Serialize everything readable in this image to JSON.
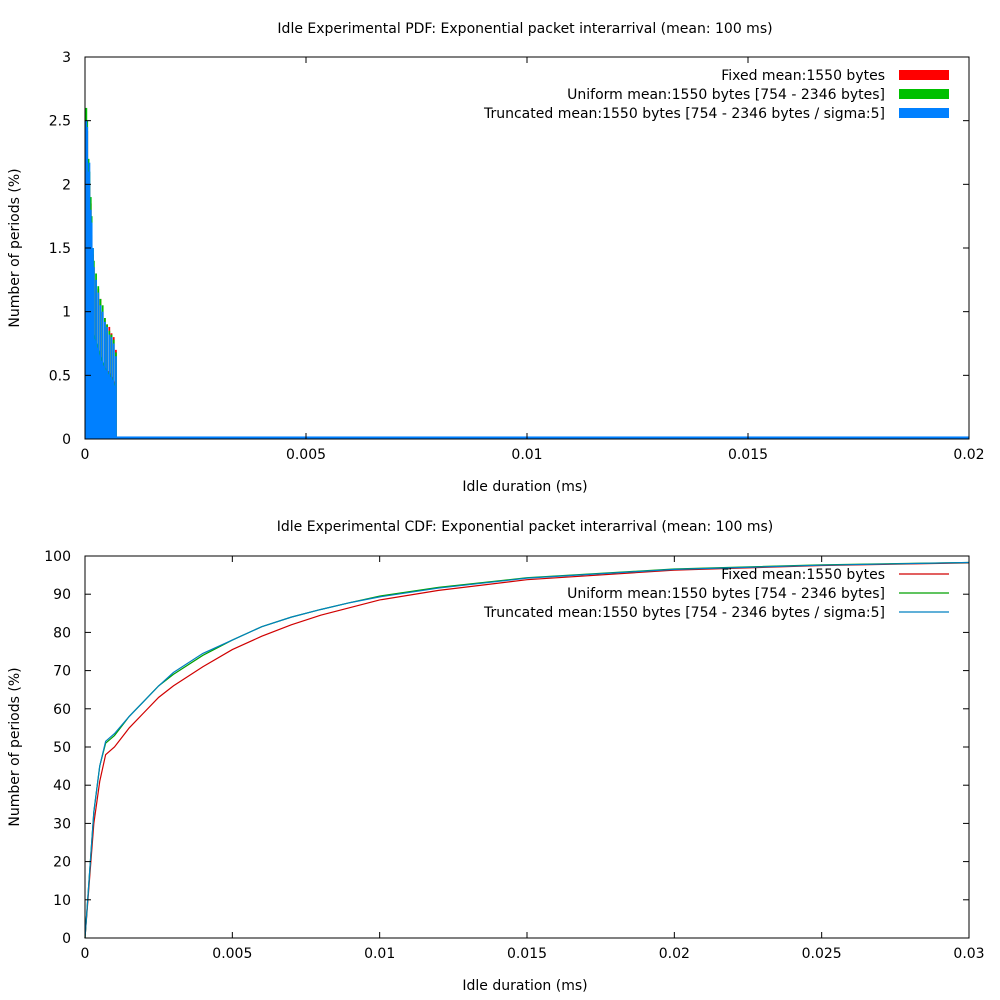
{
  "chart_data": [
    {
      "type": "bar",
      "title": "Idle Experimental PDF: Exponential packet interarrival (mean: 100 ms)",
      "xlabel": "Idle duration (ms)",
      "ylabel": "Number of periods (%)",
      "xlim": [
        0,
        0.02
      ],
      "ylim": [
        0,
        3
      ],
      "xticks": [
        "0",
        "0.005",
        "0.01",
        "0.015",
        "0.02"
      ],
      "yticks": [
        "0",
        "0.5",
        "1",
        "1.5",
        "2",
        "2.5",
        "3"
      ],
      "legend_position": "top-right",
      "grid": false,
      "series": [
        {
          "name": "Fixed mean:1550 bytes",
          "color": "#ff0000",
          "x": [
            3e-05,
            5e-05,
            8e-05,
            0.0001,
            0.00013,
            0.00015,
            0.00018,
            0.0002,
            0.00025,
            0.0003,
            0.00035,
            0.0004,
            0.00045,
            0.0005,
            0.00055,
            0.0006,
            0.00065,
            0.0007
          ],
          "values": [
            2.5,
            2.42,
            2.15,
            2.0,
            1.85,
            1.6,
            1.45,
            1.35,
            1.25,
            1.18,
            1.1,
            1.0,
            0.95,
            0.9,
            0.88,
            0.83,
            0.8,
            0.7
          ]
        },
        {
          "name": "Uniform mean:1550 bytes [754 - 2346 bytes]",
          "color": "#00c000",
          "x": [
            3e-05,
            5e-05,
            8e-05,
            0.0001,
            0.00013,
            0.00015,
            0.00018,
            0.0002,
            0.00025,
            0.0003,
            0.00035,
            0.0004,
            0.00045,
            0.0005,
            0.00055,
            0.0006,
            0.00065,
            0.0007
          ],
          "values": [
            2.6,
            2.5,
            2.2,
            2.1,
            1.9,
            1.75,
            1.5,
            1.4,
            1.3,
            1.2,
            1.1,
            1.05,
            0.95,
            0.9,
            0.85,
            0.82,
            0.78,
            0.68
          ]
        },
        {
          "name": "Truncated mean:1550 bytes [754 - 2346 bytes / sigma:5]",
          "color": "#0080ff",
          "x": [
            3e-05,
            5e-05,
            8e-05,
            0.0001,
            0.00013,
            0.00015,
            0.00018,
            0.0002,
            0.00025,
            0.0003,
            0.00035,
            0.0004,
            0.00045,
            0.0005,
            0.00055,
            0.0006,
            0.00065,
            0.0007
          ],
          "values": [
            2.5,
            2.45,
            2.1,
            2.17,
            1.8,
            1.7,
            1.5,
            1.35,
            1.25,
            1.15,
            1.05,
            1.0,
            0.92,
            0.88,
            0.82,
            0.8,
            0.75,
            0.65
          ]
        }
      ],
      "tail_level": 0.02
    },
    {
      "type": "line",
      "title": "Idle Experimental CDF: Exponential packet interarrival (mean: 100 ms)",
      "xlabel": "Idle duration (ms)",
      "ylabel": "Number of periods (%)",
      "xlim": [
        0,
        0.03
      ],
      "ylim": [
        0,
        100
      ],
      "xticks": [
        "0",
        "0.005",
        "0.01",
        "0.015",
        "0.02",
        "0.025",
        "0.03"
      ],
      "yticks": [
        "0",
        "10",
        "20",
        "30",
        "40",
        "50",
        "60",
        "70",
        "80",
        "90",
        "100"
      ],
      "legend_position": "top-right",
      "grid": false,
      "series": [
        {
          "name": "Fixed mean:1550 bytes",
          "color": "#d00000",
          "x": [
            0,
            0.0001,
            0.0002,
            0.0003,
            0.0005,
            0.0007,
            0.001,
            0.0015,
            0.002,
            0.0025,
            0.003,
            0.004,
            0.005,
            0.006,
            0.007,
            0.008,
            0.009,
            0.01,
            0.012,
            0.015,
            0.02,
            0.025,
            0.03
          ],
          "values": [
            0,
            10,
            20,
            30,
            41,
            48,
            50,
            55,
            59,
            63,
            66,
            71,
            75.5,
            79,
            82,
            84.5,
            86.5,
            88.5,
            91,
            93.8,
            96.3,
            97.5,
            98.2
          ]
        },
        {
          "name": "Uniform mean:1550 bytes [754 - 2346 bytes]",
          "color": "#00a000",
          "x": [
            0,
            0.0001,
            0.0002,
            0.0003,
            0.0005,
            0.0007,
            0.001,
            0.0015,
            0.002,
            0.0025,
            0.003,
            0.004,
            0.005,
            0.006,
            0.007,
            0.008,
            0.009,
            0.01,
            0.012,
            0.015,
            0.02,
            0.025,
            0.03
          ],
          "values": [
            0,
            11,
            22,
            33,
            45,
            51,
            53,
            58,
            62,
            66,
            69,
            74,
            78,
            81.5,
            84,
            86,
            87.8,
            89.5,
            91.8,
            94.3,
            96.6,
            97.7,
            98.3
          ]
        },
        {
          "name": "Truncated mean:1550 bytes [754 - 2346 bytes / sigma:5]",
          "color": "#0080c0",
          "x": [
            0,
            0.0001,
            0.0002,
            0.0003,
            0.0005,
            0.0007,
            0.001,
            0.0015,
            0.002,
            0.0025,
            0.003,
            0.004,
            0.005,
            0.006,
            0.007,
            0.008,
            0.009,
            0.01,
            0.012,
            0.015,
            0.02,
            0.025,
            0.03
          ],
          "values": [
            0,
            11,
            22,
            33,
            45,
            51.5,
            53.5,
            58,
            62,
            66,
            69.5,
            74.5,
            78,
            81.5,
            84,
            86,
            87.8,
            89.3,
            91.6,
            94.2,
            96.5,
            97.6,
            98.3
          ]
        }
      ]
    }
  ]
}
